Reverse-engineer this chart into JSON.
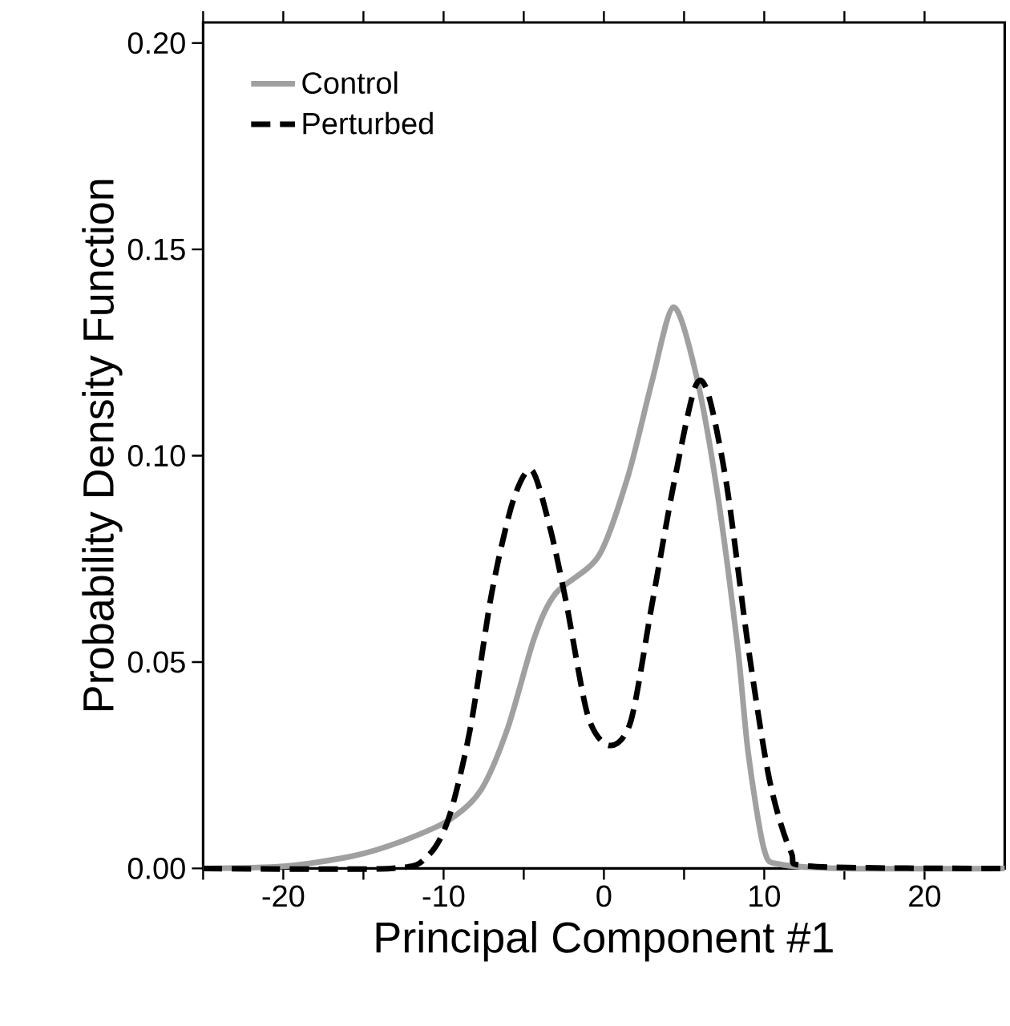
{
  "chart_data": {
    "type": "line",
    "xlabel": "Principal Component #1",
    "ylabel": "Probability Density Function",
    "xlim": [
      -25,
      25
    ],
    "ylim": [
      0,
      0.205
    ],
    "xticks": [
      {
        "value": -25,
        "label": null
      },
      {
        "value": -20,
        "label": "-20"
      },
      {
        "value": -15,
        "label": null
      },
      {
        "value": -10,
        "label": "-10"
      },
      {
        "value": -5,
        "label": null
      },
      {
        "value": 0,
        "label": "0"
      },
      {
        "value": 5,
        "label": null
      },
      {
        "value": 10,
        "label": "10"
      },
      {
        "value": 15,
        "label": null
      },
      {
        "value": 20,
        "label": "20"
      }
    ],
    "yticks": [
      {
        "value": 0,
        "label": "0.00"
      },
      {
        "value": 0.05,
        "label": "0.05"
      },
      {
        "value": 0.1,
        "label": "0.10"
      },
      {
        "value": 0.15,
        "label": "0.15"
      },
      {
        "value": 0.2,
        "label": "0.20"
      }
    ],
    "legend": "top left",
    "marker": "none",
    "series": [
      {
        "name": "Control",
        "color": "#a0a0a0",
        "line_style": "solid",
        "x": [
          -25,
          -20,
          -15.67,
          -12.67,
          -9.67,
          -7.67,
          -6,
          -4.33,
          -3,
          -0.33,
          1.5,
          3,
          4.33,
          5.67,
          7,
          8.33,
          9,
          10,
          11,
          15,
          25
        ],
        "values": [
          0,
          0.0005,
          0.003,
          0.0065,
          0.0117,
          0.019,
          0.034,
          0.056,
          0.0667,
          0.0757,
          0.095,
          0.118,
          0.136,
          0.121,
          0.093,
          0.054,
          0.028,
          0.0045,
          0.001,
          0,
          0
        ]
      },
      {
        "name": "Perturbed",
        "color": "#000000",
        "line_style": "dashed",
        "x": [
          -25,
          -13.3,
          -11,
          -9.67,
          -8.33,
          -7,
          -5.67,
          -4.5,
          -3.33,
          -2.33,
          -1,
          0.33,
          1.67,
          3,
          4.33,
          5.67,
          6.5,
          7.67,
          9,
          10.33,
          11.67,
          13,
          25
        ],
        "values": [
          0,
          0,
          0.003,
          0.0123,
          0.034,
          0.0667,
          0.089,
          0.0965,
          0.082,
          0.064,
          0.037,
          0.0298,
          0.0356,
          0.064,
          0.0926,
          0.1165,
          0.115,
          0.0926,
          0.0537,
          0.0214,
          0.004,
          0.0005,
          0
        ]
      }
    ]
  }
}
